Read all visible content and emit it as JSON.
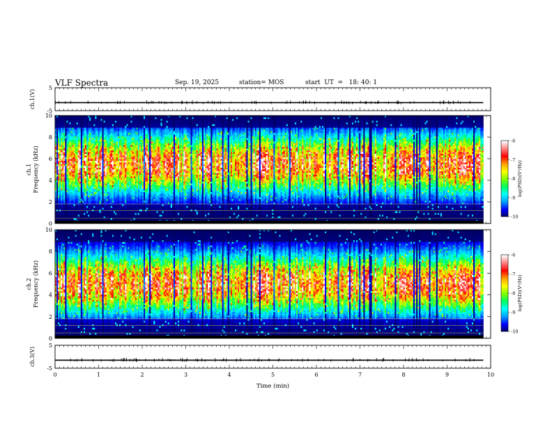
{
  "header": {
    "title": "VLF Spectra",
    "date": "Sep. 19, 2025",
    "station": "station= MOS",
    "start_ut": "start  UT  =   18: 40: 1"
  },
  "chart_data": [
    {
      "type": "line",
      "panel": "ch1-waveform",
      "ylabel": "ch.1(V)",
      "ylim": [
        -5,
        5
      ],
      "yticks": [
        "5",
        "-5"
      ],
      "series_level": -1.5
    },
    {
      "type": "heatmap",
      "panel": "ch1-spectrogram",
      "ylabel": "ch.1\nFrequency (kHz)",
      "ylim": [
        0,
        10
      ],
      "yticks": [
        "0",
        "2",
        "4",
        "6",
        "8",
        "10"
      ],
      "colorbar": {
        "label": "log(PSD)(V²/Hz)",
        "range": [
          -10,
          -6
        ],
        "ticks": [
          "-6",
          "-7",
          "-8",
          "-9",
          "-10"
        ]
      }
    },
    {
      "type": "heatmap",
      "panel": "ch2-spectrogram",
      "ylabel": "ch.2\nFrequency (kHz)",
      "ylim": [
        0,
        10
      ],
      "yticks": [
        "0",
        "2",
        "4",
        "6",
        "8",
        "10"
      ],
      "colorbar": {
        "label": "log(PSD)(V²/Hz)",
        "range": [
          -10,
          -6
        ],
        "ticks": [
          "-6",
          "-7",
          "-8",
          "-9",
          "-10"
        ]
      }
    },
    {
      "type": "line",
      "panel": "ch3-waveform",
      "ylabel": "ch.3(V)",
      "ylim": [
        -5,
        5
      ],
      "yticks": [
        "5",
        "-5"
      ],
      "series_level": -1.5
    }
  ],
  "xaxis": {
    "label": "Time  (min)",
    "range": [
      0,
      10
    ],
    "ticks": [
      "0",
      "1",
      "2",
      "3",
      "4",
      "5",
      "6",
      "7",
      "8",
      "9",
      "10"
    ],
    "data_end": 9.83
  },
  "colors": {
    "colormap": [
      "#000060",
      "#0000ff",
      "#00a0ff",
      "#00ffff",
      "#00ff60",
      "#80ff00",
      "#ffff00",
      "#ffa000",
      "#ff0000",
      "#ff8080",
      "#ffffff"
    ],
    "line": "#000000"
  }
}
